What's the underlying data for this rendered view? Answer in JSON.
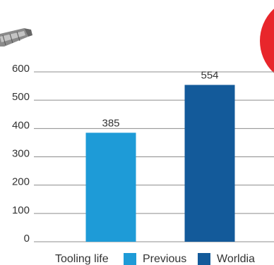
{
  "chart_data": {
    "type": "bar",
    "categories": [
      "Tooling life"
    ],
    "series": [
      {
        "name": "Previous",
        "color": "#1e9bd7",
        "values": [
          385
        ]
      },
      {
        "name": "Worldia",
        "color": "#135a9a",
        "values": [
          554
        ]
      }
    ],
    "ylim": [
      0,
      600
    ],
    "yticks": [
      0,
      100,
      200,
      300,
      400,
      500,
      600
    ],
    "grid": true
  }
}
